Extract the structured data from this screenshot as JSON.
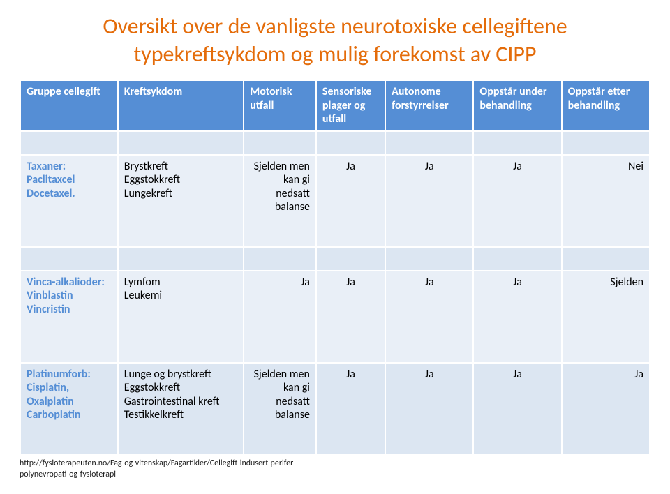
{
  "title_line1": "Oversikt over de vanligste neurotoxiske cellegiftene",
  "title_line2": "typekreftsykdom og mulig forekomst av CIPP",
  "headers": {
    "c0": "Gruppe cellegift",
    "c1": "Kreftsykdom",
    "c2": "Motorisk utfall",
    "c3": "Sensoriske plager og utfall",
    "c4": "Autonome forstyrrelser",
    "c5": "Oppstår under behandling",
    "c6": "Oppstår etter behandling"
  },
  "rows": [
    {
      "group": "Taxaner:\nPaclitaxcel\nDocetaxel.",
      "cancer": "Brystkreft\nEggstokkreft\nLungekreft",
      "motor": "Sjelden men kan gi nedsatt balanse",
      "sensory": "Ja",
      "autonomic": "Ja",
      "during": "Ja",
      "after": "Nei"
    },
    {
      "group": "Vinca-alkalioder:\nVinblastin\nVincristin",
      "cancer": "Lymfom\nLeukemi",
      "motor": "Ja",
      "sensory": "Ja",
      "autonomic": "Ja",
      "during": "Ja",
      "after": "Sjelden"
    },
    {
      "group": "Platinumforb:\nCisplatin,\nOxalplatin\nCarboplatin",
      "cancer": "Lunge og brystkreft\nEggstokkreft\nGastrointestinal kreft\nTestikkelkreft",
      "motor": "Sjelden men kan gi nedsatt balanse",
      "sensory": "Ja",
      "autonomic": "Ja",
      "during": "Ja",
      "after": "Ja"
    }
  ],
  "footer_line1": "http://fysioterapeuten.no/Fag-og-vitenskap/Fagartikler/Cellegift-indusert-perifer-",
  "footer_line2": "polynevropati-og-fysioterapi",
  "colors": {
    "accent_orange": "#e46c0a",
    "header_blue": "#558ed5",
    "band_a": "#dce6f2",
    "band_b": "#e9eff7",
    "text_blue": "#558ed5",
    "text_black": "#000000",
    "background": "#ffffff"
  }
}
